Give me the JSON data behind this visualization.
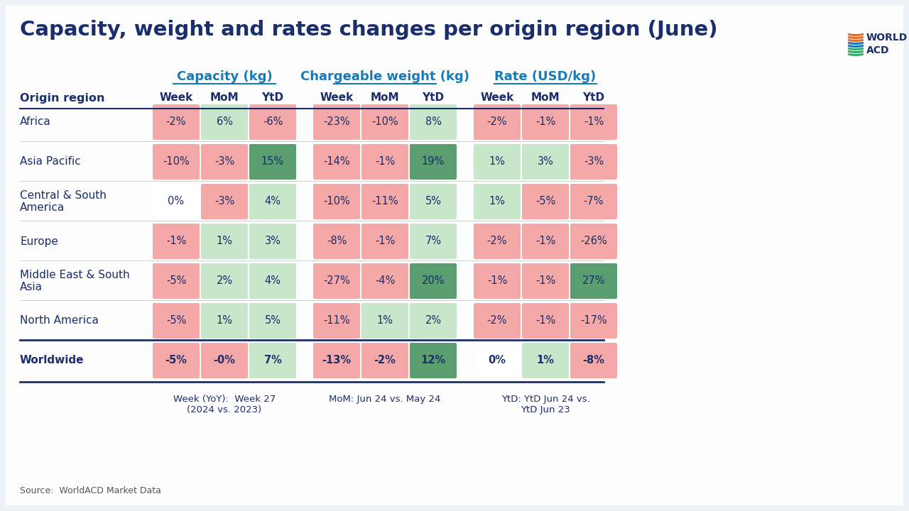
{
  "title": "Capacity, weight and rates changes per origin region (June)",
  "background_color": "#f0f4f8",
  "title_color": "#1a2e6b",
  "title_fontsize": 21,
  "group_headers": [
    "Capacity (kg)",
    "Chargeable weight (kg)",
    "Rate (USD/kg)"
  ],
  "col_headers": [
    "Week",
    "MoM",
    "YtD"
  ],
  "row_labels": [
    "Africa",
    "Asia Pacific",
    "Central & South\nAmerica",
    "Europe",
    "Middle East & South\nAsia",
    "North America",
    "Worldwide"
  ],
  "is_bold_row": [
    false,
    false,
    false,
    false,
    false,
    false,
    true
  ],
  "data": {
    "capacity": [
      [
        "-2%",
        "6%",
        "-6%"
      ],
      [
        "-10%",
        "-3%",
        "15%"
      ],
      [
        "0%",
        "-3%",
        "4%"
      ],
      [
        "-1%",
        "1%",
        "3%"
      ],
      [
        "-5%",
        "2%",
        "4%"
      ],
      [
        "-5%",
        "1%",
        "5%"
      ],
      [
        "-5%",
        "-0%",
        "7%"
      ]
    ],
    "chargeable_weight": [
      [
        "-23%",
        "-10%",
        "8%"
      ],
      [
        "-14%",
        "-1%",
        "19%"
      ],
      [
        "-10%",
        "-11%",
        "5%"
      ],
      [
        "-8%",
        "-1%",
        "7%"
      ],
      [
        "-27%",
        "-4%",
        "20%"
      ],
      [
        "-11%",
        "1%",
        "2%"
      ],
      [
        "-13%",
        "-2%",
        "12%"
      ]
    ],
    "rate": [
      [
        "-2%",
        "-1%",
        "-1%"
      ],
      [
        "1%",
        "3%",
        "-3%"
      ],
      [
        "1%",
        "-5%",
        "-7%"
      ],
      [
        "-2%",
        "-1%",
        "-26%"
      ],
      [
        "-1%",
        "-1%",
        "27%"
      ],
      [
        "-2%",
        "-1%",
        "-17%"
      ],
      [
        "0%",
        "1%",
        "-8%"
      ]
    ]
  },
  "colors": {
    "capacity": [
      [
        "#f4a9a8",
        "#c8e6c9",
        "#f4a9a8"
      ],
      [
        "#f4a9a8",
        "#f4a9a8",
        "#5a9e6f"
      ],
      [
        "#ffffff",
        "#f4a9a8",
        "#c8e6c9"
      ],
      [
        "#f4a9a8",
        "#c8e6c9",
        "#c8e6c9"
      ],
      [
        "#f4a9a8",
        "#c8e6c9",
        "#c8e6c9"
      ],
      [
        "#f4a9a8",
        "#c8e6c9",
        "#c8e6c9"
      ],
      [
        "#f4a9a8",
        "#f4a9a8",
        "#c8e6c9"
      ]
    ],
    "chargeable_weight": [
      [
        "#f4a9a8",
        "#f4a9a8",
        "#c8e6c9"
      ],
      [
        "#f4a9a8",
        "#f4a9a8",
        "#5a9e6f"
      ],
      [
        "#f4a9a8",
        "#f4a9a8",
        "#c8e6c9"
      ],
      [
        "#f4a9a8",
        "#f4a9a8",
        "#c8e6c9"
      ],
      [
        "#f4a9a8",
        "#f4a9a8",
        "#5a9e6f"
      ],
      [
        "#f4a9a8",
        "#c8e6c9",
        "#c8e6c9"
      ],
      [
        "#f4a9a8",
        "#f4a9a8",
        "#5a9e6f"
      ]
    ],
    "rate": [
      [
        "#f4a9a8",
        "#f4a9a8",
        "#f4a9a8"
      ],
      [
        "#c8e6c9",
        "#c8e6c9",
        "#f4a9a8"
      ],
      [
        "#c8e6c9",
        "#f4a9a8",
        "#f4a9a8"
      ],
      [
        "#f4a9a8",
        "#f4a9a8",
        "#f4a9a8"
      ],
      [
        "#f4a9a8",
        "#f4a9a8",
        "#5a9e6f"
      ],
      [
        "#f4a9a8",
        "#f4a9a8",
        "#f4a9a8"
      ],
      [
        "#ffffff",
        "#c8e6c9",
        "#f4a9a8"
      ]
    ]
  },
  "footer_notes": [
    "Week (YoY):  Week 27\n(2024 vs. 2023)",
    "MoM: Jun 24 vs. May 24",
    "YtD: YtD Jun 24 vs.\nYtD Jun 23"
  ],
  "source_text": "Source:  WorldACD Market Data",
  "header_color": "#1a7ab5",
  "origin_region_header": "Origin region",
  "col_header_color": "#1a2e6b",
  "divider_color": "#1a2e6b"
}
